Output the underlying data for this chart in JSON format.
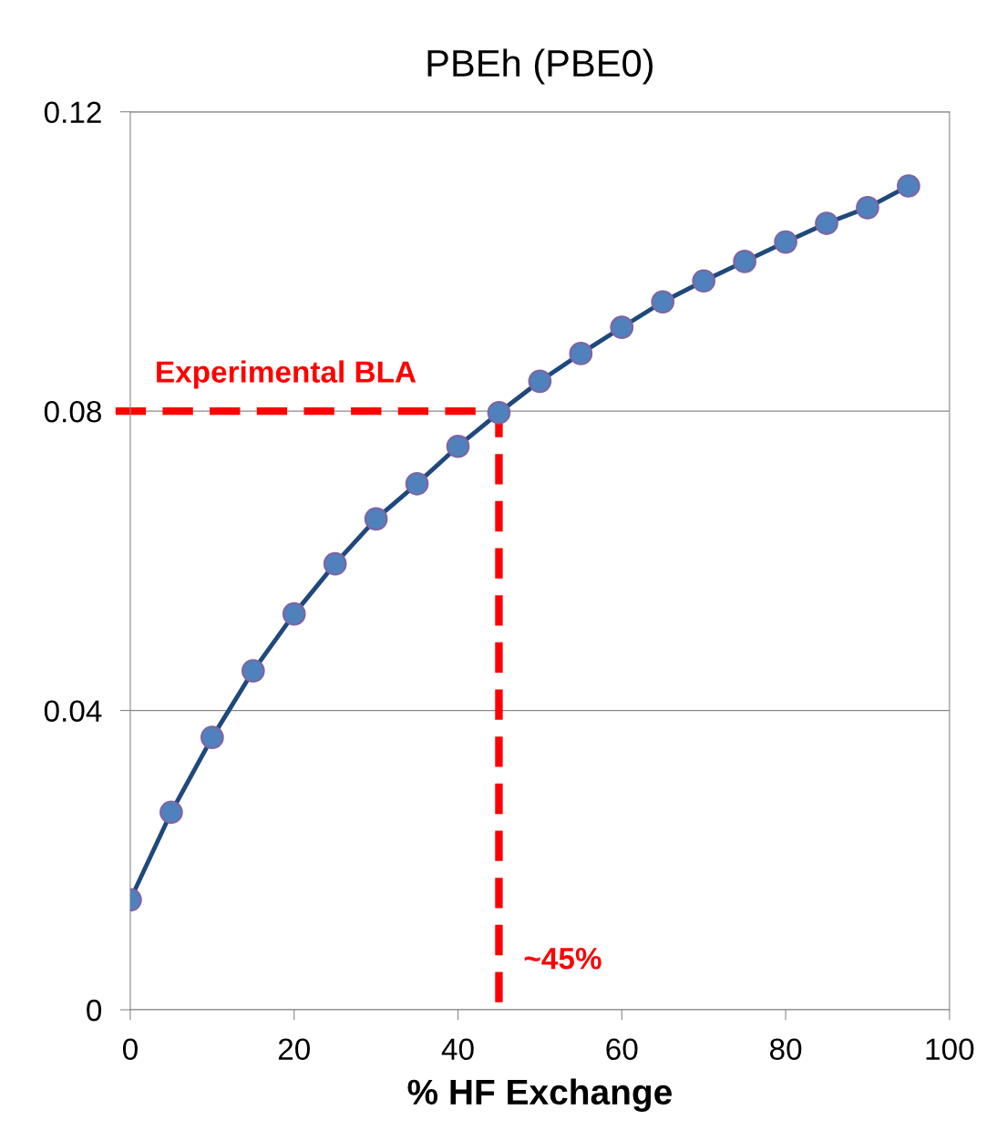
{
  "chart_data": {
    "type": "line",
    "title": "PBEh (PBE0)",
    "xlabel": "% HF Exchange",
    "x": [
      0,
      5,
      10,
      15,
      20,
      25,
      30,
      35,
      40,
      45,
      50,
      55,
      60,
      65,
      70,
      75,
      80,
      85,
      90,
      95
    ],
    "series": [
      {
        "color": "#1f497d",
        "values": [
          0.0147,
          0.0264,
          0.0364,
          0.0453,
          0.0529,
          0.0596,
          0.0656,
          0.0703,
          0.0753,
          0.0798,
          0.084,
          0.0877,
          0.0912,
          0.0946,
          0.0974,
          0.1,
          0.1026,
          0.1051,
          0.1072,
          0.1101
        ]
      }
    ],
    "xlim": [
      0,
      100
    ],
    "xticks": [
      0,
      20,
      40,
      60,
      80,
      100
    ],
    "ylim": [
      0,
      0.12
    ],
    "yticks": [
      0,
      0.04,
      0.08,
      0.12
    ],
    "grid": "y",
    "marker": "circle",
    "line_style": "solid",
    "ref_lines": [
      {
        "axis": "y",
        "value": 0.08,
        "label": "Experimental BLA",
        "color": "#ff0000",
        "line_style": "dashed"
      },
      {
        "axis": "x",
        "value": 45,
        "label": "~45%",
        "color": "#ff0000",
        "line_style": "dashed"
      }
    ]
  }
}
